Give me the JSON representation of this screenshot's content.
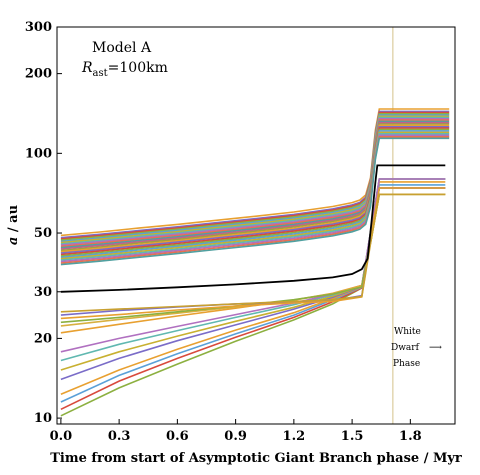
{
  "chart_data": {
    "type": "line",
    "xlabel": "Time from start of Asymptotic Giant Branch phase / Myr",
    "ylabel_italic": "a",
    "ylabel_rest": " / au",
    "y_scale": "log",
    "xlim": [
      -0.02,
      2.03
    ],
    "ylim": [
      9.5,
      300
    ],
    "x_ticks": [
      0.0,
      0.3,
      0.6,
      0.9,
      1.2,
      1.5,
      1.8
    ],
    "x_tick_labels": [
      "0.0",
      "0.3",
      "0.6",
      "0.9",
      "1.2",
      "1.5",
      "1.8"
    ],
    "y_ticks": [
      10,
      20,
      30,
      50,
      100,
      200,
      300
    ],
    "y_tick_labels": [
      "10",
      "20",
      "30",
      "50",
      "100",
      "200",
      "300"
    ],
    "model_label": "Model A",
    "radius_label": {
      "symbol": "R",
      "subscript": "ast",
      "value": "=100km"
    },
    "phase_annotation": {
      "line1": "White",
      "line2": "Dwarf",
      "line3": "Phase",
      "arrow": "⟶"
    },
    "white_dwarf_start_x": 1.71,
    "profile": {
      "x": [
        0.0,
        0.2,
        0.4,
        0.6,
        0.8,
        1.0,
        1.2,
        1.4,
        1.5,
        1.54,
        1.57,
        1.595,
        1.62,
        1.64,
        2.0
      ],
      "factor": [
        1.0,
        1.03,
        1.065,
        1.1,
        1.14,
        1.18,
        1.225,
        1.285,
        1.33,
        1.36,
        1.42,
        1.65,
        2.5,
        3.0,
        3.0
      ]
    },
    "black_curve": {
      "x": [
        0.0,
        0.3,
        0.6,
        0.9,
        1.2,
        1.4,
        1.5,
        1.55,
        1.58,
        1.6,
        1.62,
        1.63,
        1.66,
        1.98
      ],
      "y": [
        30.0,
        30.5,
        31.2,
        32.0,
        33.0,
        34.0,
        35.0,
        36.5,
        40.0,
        55.0,
        78.0,
        90.0,
        90.0,
        90.0
      ]
    },
    "upper_band_start_a": [
      49,
      48,
      47.5,
      47,
      46.5,
      46,
      45.5,
      45,
      44.5,
      44,
      43.5,
      43,
      42.5,
      42,
      41.5,
      41,
      40.5,
      40,
      39.5,
      39,
      38.5,
      38
    ],
    "lower_curves": [
      {
        "x": [
          0.0,
          0.3,
          0.6,
          0.9,
          1.2,
          1.4,
          1.55,
          1.6,
          1.64,
          1.98
        ],
        "y": [
          10.2,
          13.0,
          16.0,
          19.5,
          23.5,
          27.0,
          31.0,
          48.0,
          70.0,
          70.0
        ],
        "color": "#8cb040"
      },
      {
        "x": [
          0.0,
          0.3,
          0.6,
          0.9,
          1.2,
          1.4,
          1.55,
          1.6,
          1.64,
          1.98
        ],
        "y": [
          10.8,
          13.8,
          16.8,
          20.2,
          24.0,
          27.5,
          31.0,
          50.0,
          74.0,
          74.0
        ],
        "color": "#d84a3c"
      },
      {
        "x": [
          0.0,
          0.3,
          0.6,
          0.9,
          1.2,
          1.4,
          1.55,
          1.6,
          1.64,
          1.98
        ],
        "y": [
          11.5,
          14.5,
          17.5,
          20.8,
          24.5,
          28.0,
          31.2,
          51.0,
          76.0,
          76.0
        ],
        "color": "#5aa0d8"
      },
      {
        "x": [
          0.0,
          0.3,
          0.6,
          0.9,
          1.2,
          1.4,
          1.55,
          1.6,
          1.64,
          1.98
        ],
        "y": [
          12.3,
          15.2,
          18.2,
          21.5,
          25.0,
          28.3,
          31.3,
          52.0,
          78.0,
          78.0
        ],
        "color": "#e8a030"
      },
      {
        "x": [
          0.0,
          0.3,
          0.6,
          0.9,
          1.2,
          1.4,
          1.55,
          1.6,
          1.64,
          1.98
        ],
        "y": [
          14.0,
          16.8,
          19.6,
          22.5,
          25.8,
          28.6,
          31.4,
          53.0,
          80.0,
          80.0
        ],
        "color": "#7a6cc8"
      },
      {
        "x": [
          0.0,
          0.3,
          0.6,
          0.9,
          1.2,
          1.4,
          1.55,
          1.6,
          1.64,
          1.98
        ],
        "y": [
          15.2,
          17.8,
          20.4,
          23.2,
          26.2,
          28.9,
          31.5,
          53.0,
          80.0,
          80.0
        ],
        "color": "#c8b030"
      },
      {
        "x": [
          0.0,
          0.3,
          0.6,
          0.9,
          1.2,
          1.4,
          1.55,
          1.6,
          1.64,
          1.98
        ],
        "y": [
          16.5,
          19.0,
          21.4,
          24.0,
          26.8,
          29.2,
          31.6,
          53.0,
          80.0,
          80.0
        ],
        "color": "#60b8b0"
      },
      {
        "x": [
          0.0,
          0.3,
          0.6,
          0.9,
          1.2,
          1.4,
          1.55,
          1.6,
          1.64,
          1.98
        ],
        "y": [
          17.8,
          20.0,
          22.2,
          24.6,
          27.2,
          29.4,
          31.7,
          53.0,
          80.0,
          80.0
        ],
        "color": "#b070c0"
      },
      {
        "x": [
          0.0,
          0.3,
          0.6,
          0.9,
          1.2,
          1.4,
          1.55,
          1.6,
          1.64,
          1.98
        ],
        "y": [
          21.0,
          22.6,
          24.3,
          26.0,
          27.9,
          29.6,
          31.7,
          48.0,
          70.0,
          70.0
        ],
        "color": "#e8a030"
      },
      {
        "x": [
          0.0,
          0.3,
          0.6,
          0.9,
          1.2,
          1.4,
          1.55,
          1.6,
          1.64,
          1.98
        ],
        "y": [
          22.3,
          23.6,
          24.9,
          26.3,
          27.9,
          29.5,
          31.5,
          48.0,
          70.0,
          70.0
        ],
        "color": "#d8b040"
      },
      {
        "x": [
          0.0,
          0.3,
          0.6,
          0.9,
          1.2,
          1.4,
          1.55,
          1.6,
          1.64,
          1.98
        ],
        "y": [
          23.0,
          24.0,
          25.2,
          26.5,
          28.0,
          29.4,
          31.3,
          50.0,
          74.0,
          74.0
        ],
        "color": "#8cb040"
      },
      {
        "x": [
          0.0,
          0.3,
          0.6,
          0.9,
          1.2,
          1.4,
          1.55,
          1.6,
          1.64,
          1.98
        ],
        "y": [
          24.5,
          25.5,
          26.3,
          27.0,
          27.4,
          27.8,
          29.0,
          50.0,
          74.0,
          74.0
        ],
        "color": "#7a6cc8"
      },
      {
        "x": [
          0.0,
          0.3,
          0.6,
          0.9,
          1.2,
          1.4,
          1.55,
          1.6,
          1.64,
          1.98
        ],
        "y": [
          23.8,
          24.6,
          25.6,
          26.5,
          27.2,
          27.6,
          28.7,
          50.0,
          74.0,
          74.0
        ],
        "color": "#e8a030"
      },
      {
        "x": [
          0.0,
          0.3,
          0.6,
          0.9,
          1.2,
          1.4,
          1.55,
          1.6,
          1.64,
          1.98
        ],
        "y": [
          25.2,
          25.8,
          26.4,
          27.0,
          27.6,
          28.0,
          28.8,
          48.0,
          70.0,
          70.0
        ],
        "color": "#c8a030"
      }
    ]
  }
}
